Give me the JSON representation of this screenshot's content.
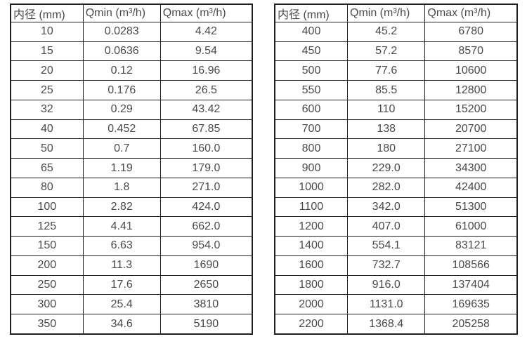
{
  "page": {
    "background": "#ffffff",
    "text_color": "#4a4a4a",
    "border_color": "#1f1f1f"
  },
  "chart_data": [
    {
      "type": "table",
      "title": "",
      "headers": [
        "内径 (mm)",
        "Qmin (m³/h)",
        "Qmax (m³/h)"
      ],
      "rows": [
        [
          "10",
          "0.0283",
          "4.42"
        ],
        [
          "15",
          "0.0636",
          "9.54"
        ],
        [
          "20",
          "0.12",
          "16.96"
        ],
        [
          "25",
          "0.176",
          "26.5"
        ],
        [
          "32",
          "0.29",
          "43.42"
        ],
        [
          "40",
          "0.452",
          "67.85"
        ],
        [
          "50",
          "0.7",
          "160.0"
        ],
        [
          "65",
          "1.19",
          "179.0"
        ],
        [
          "80",
          "1.8",
          "271.0"
        ],
        [
          "100",
          "2.82",
          "424.0"
        ],
        [
          "125",
          "4.41",
          "662.0"
        ],
        [
          "150",
          "6.63",
          "954.0"
        ],
        [
          "200",
          "11.3",
          "1690"
        ],
        [
          "250",
          "17.6",
          "2650"
        ],
        [
          "300",
          "25.4",
          "3810"
        ],
        [
          "350",
          "34.6",
          "5190"
        ]
      ]
    },
    {
      "type": "table",
      "title": "",
      "headers": [
        "内径 (mm)",
        "Qmin (m³/h)",
        "Qmax (m³/h)"
      ],
      "rows": [
        [
          "400",
          "45.2",
          "6780"
        ],
        [
          "450",
          "57.2",
          "8570"
        ],
        [
          "500",
          "77.6",
          "10600"
        ],
        [
          "550",
          "85.5",
          "12800"
        ],
        [
          "600",
          "110",
          "15200"
        ],
        [
          "700",
          "138",
          "20700"
        ],
        [
          "800",
          "180",
          "27100"
        ],
        [
          "900",
          "229.0",
          "34300"
        ],
        [
          "1000",
          "282.0",
          "42400"
        ],
        [
          "1100",
          "342.0",
          "51300"
        ],
        [
          "1200",
          "407.0",
          "61000"
        ],
        [
          "1400",
          "554.1",
          "83121"
        ],
        [
          "1600",
          "732.7",
          "108566"
        ],
        [
          "1800",
          "916.0",
          "137404"
        ],
        [
          "2000",
          "1131.0",
          "169635"
        ],
        [
          "2200",
          "1368.4",
          "205258"
        ]
      ]
    }
  ]
}
